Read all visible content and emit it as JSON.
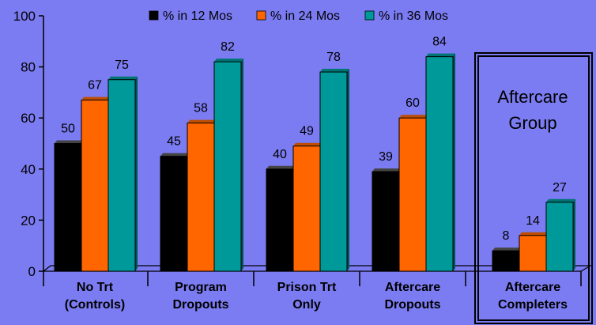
{
  "chart_data": {
    "type": "bar",
    "categories": [
      [
        "No Trt",
        "(Controls)"
      ],
      [
        "Program",
        "Dropouts"
      ],
      [
        "Prison Trt",
        "Only"
      ],
      [
        "Aftercare",
        "Dropouts"
      ],
      [
        "Aftercare",
        "Completers"
      ]
    ],
    "series": [
      {
        "name": "% in 12 Mos",
        "color": "#000000",
        "values": [
          50,
          45,
          40,
          39,
          8
        ]
      },
      {
        "name": "% in 24 Mos",
        "color": "#ff6600",
        "values": [
          67,
          58,
          49,
          60,
          14
        ]
      },
      {
        "name": "% in 36 Mos",
        "color": "#009999",
        "values": [
          75,
          82,
          78,
          84,
          27
        ]
      }
    ],
    "ylim": [
      0,
      100
    ],
    "yticks": [
      0,
      20,
      40,
      60,
      80,
      100
    ],
    "legend_position": "top",
    "annotation": [
      "Aftercare",
      "Group"
    ],
    "highlighted_category": 4
  }
}
